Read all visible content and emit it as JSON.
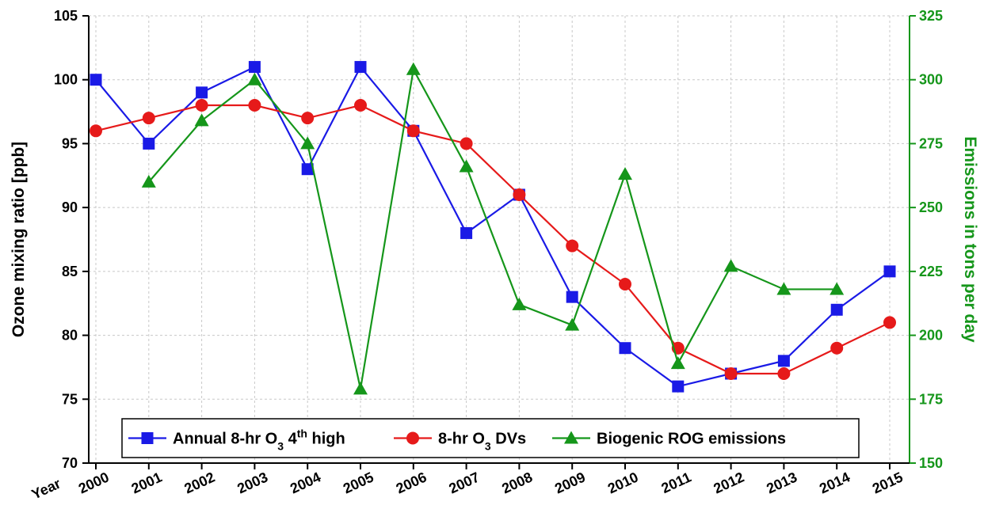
{
  "chart_data": {
    "type": "line",
    "xlabel": "Year",
    "ylabel_left": "Ozone mixing ratio [ppb]",
    "ylabel_right": "Emissions in tons per day",
    "ylim_left": [
      70,
      105
    ],
    "ylim_right": [
      150,
      325
    ],
    "yticks_left": [
      "70",
      "75",
      "80",
      "85",
      "90",
      "95",
      "100",
      "105"
    ],
    "yticks_right": [
      "150",
      "175",
      "200",
      "225",
      "250",
      "275",
      "300",
      "325"
    ],
    "categories": [
      "2000",
      "2001",
      "2002",
      "2003",
      "2004",
      "2005",
      "2006",
      "2007",
      "2008",
      "2009",
      "2010",
      "2011",
      "2012",
      "2013",
      "2014",
      "2015"
    ],
    "grid": true,
    "legend_position": "bottom-center",
    "series": [
      {
        "name": "Annual 8-hr O3 4th high",
        "legend_main": "Annual 8-hr O",
        "legend_sub": "3",
        "legend_mid": " 4",
        "legend_sup": "th",
        "legend_end": " high",
        "axis": "left",
        "color": "#1a1ae6",
        "marker": "square",
        "values": [
          100,
          95,
          99,
          101,
          93,
          101,
          96,
          88,
          91,
          83,
          79,
          76,
          77,
          78,
          82,
          85
        ]
      },
      {
        "name": "8-hr O3 DVs",
        "legend_main": "8-hr O",
        "legend_sub": "3",
        "legend_end": " DVs",
        "axis": "left",
        "color": "#e61a1a",
        "marker": "circle",
        "values": [
          96,
          97,
          98,
          98,
          97,
          98,
          96,
          95,
          91,
          87,
          84,
          79,
          77,
          77,
          79,
          81
        ]
      },
      {
        "name": "Biogenic ROG emissions",
        "legend_main": "Biogenic ROG emissions",
        "axis": "right",
        "color": "#15961a",
        "marker": "triangle",
        "values": [
          null,
          260,
          284,
          300,
          275,
          179,
          304,
          266,
          212,
          204,
          263,
          189,
          227,
          218,
          218,
          null
        ]
      }
    ]
  },
  "colors": {
    "left_axis": "#000000",
    "right_axis": "#15961a",
    "grid": "#c8c8c8"
  }
}
